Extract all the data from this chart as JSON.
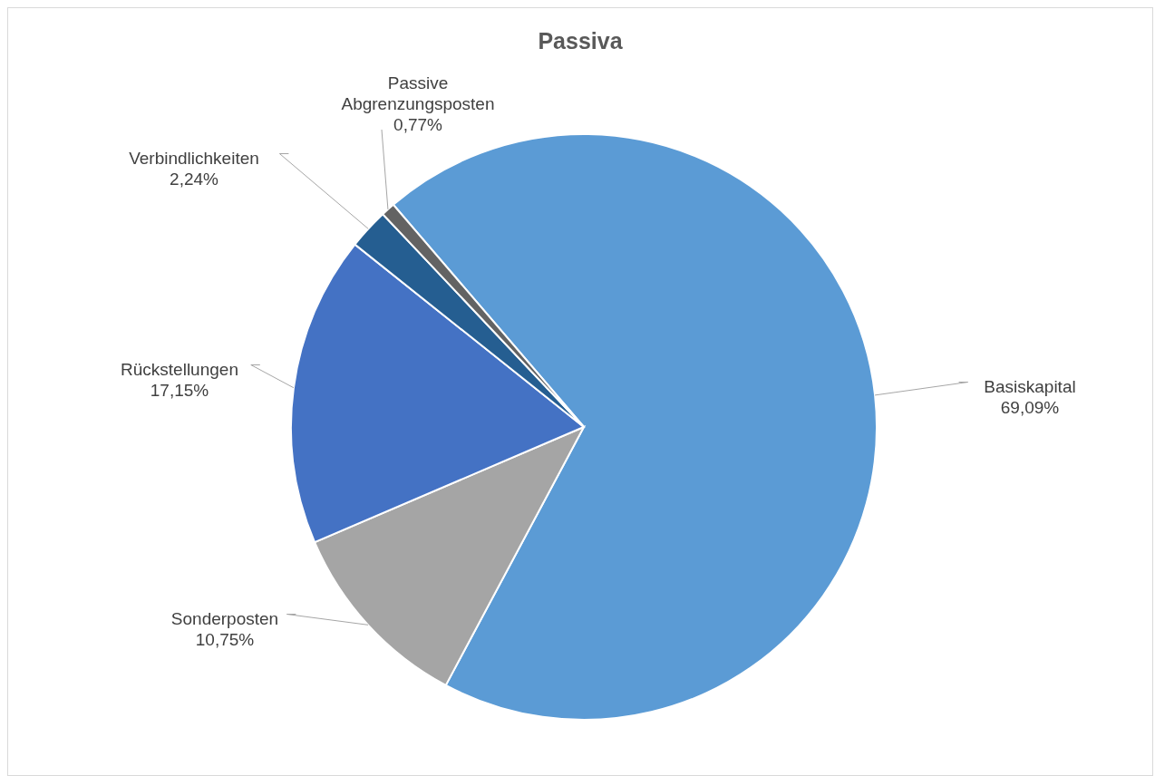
{
  "chart_data": {
    "type": "pie",
    "title": "Passiva",
    "categories": [
      "Basiskapital",
      "Sonderposten",
      "Rückstellungen",
      "Verbindlichkeiten",
      "Passive Abgrenzungsposten"
    ],
    "values": [
      69.09,
      10.75,
      17.15,
      2.24,
      0.77
    ],
    "colors": [
      "#5b9bd5",
      "#a5a5a5",
      "#4472c4",
      "#255e91",
      "#636363"
    ],
    "value_labels": [
      "69,09%",
      "10,75%",
      "17,15%",
      "2,24%",
      "0,77%"
    ],
    "legend": false
  }
}
